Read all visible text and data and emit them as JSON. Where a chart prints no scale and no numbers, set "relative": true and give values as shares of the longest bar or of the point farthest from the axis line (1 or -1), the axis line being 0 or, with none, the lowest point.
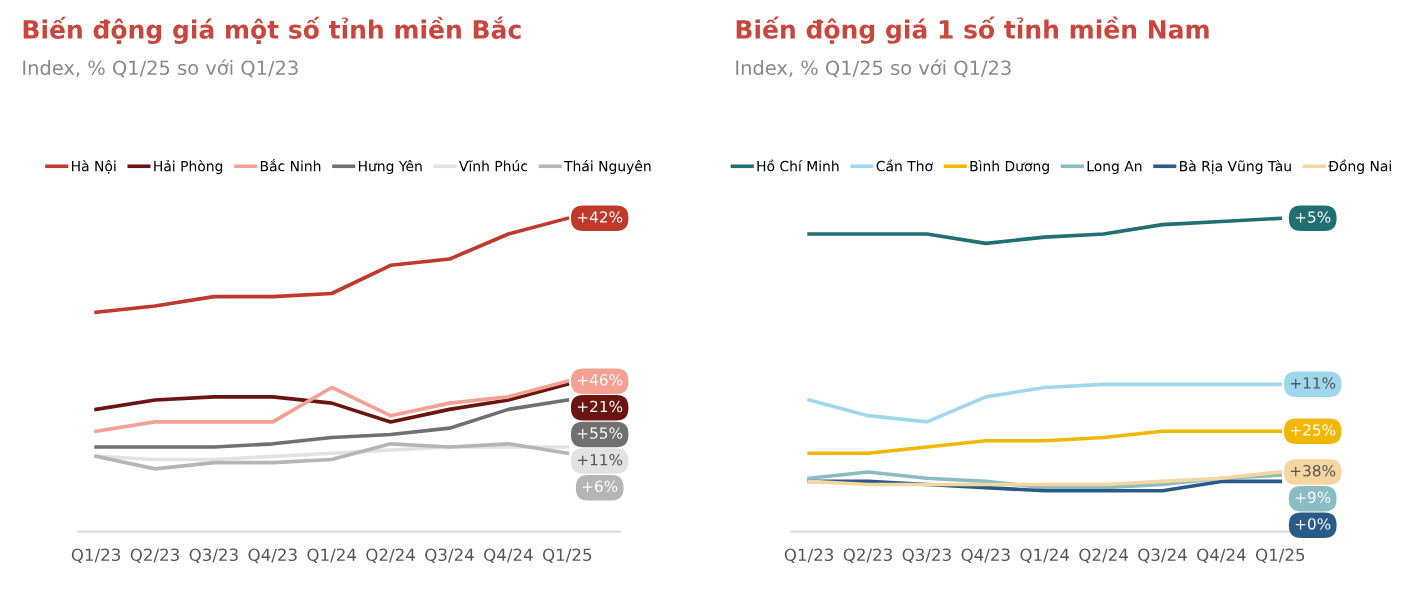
{
  "chart_data": [
    {
      "type": "line",
      "title": "Biến động giá một số tỉnh miền Bắc",
      "subtitle": "Index, % Q1/25 so với Q1/23",
      "relative": true,
      "legend": "top",
      "grid": false,
      "marker": "none",
      "line_style": "solid",
      "categories": [
        "Q1/23",
        "Q2/23",
        "Q3/23",
        "Q4/23",
        "Q1/24",
        "Q2/24",
        "Q3/24",
        "Q4/24",
        "Q1/25"
      ],
      "annotations": [
        "+42%",
        "+21%",
        "+46%",
        "+55%",
        "+11%",
        "+6%"
      ],
      "series": [
        {
          "name": "Hà Nội",
          "color": "#c0392b",
          "values": [
            0.7,
            0.72,
            0.75,
            0.75,
            0.76,
            0.85,
            0.87,
            0.95,
            1.0
          ]
        },
        {
          "name": "Hải Phòng",
          "color": "#6b1510",
          "values": [
            0.39,
            0.42,
            0.43,
            0.43,
            0.41,
            0.35,
            0.39,
            0.42,
            0.47
          ]
        },
        {
          "name": "Bắc Ninh",
          "color": "#f4a193",
          "values": [
            0.32,
            0.35,
            0.35,
            0.35,
            0.46,
            0.37,
            0.41,
            0.43,
            0.48
          ]
        },
        {
          "name": "Hưng Yên",
          "color": "#707070",
          "values": [
            0.27,
            0.27,
            0.27,
            0.28,
            0.3,
            0.31,
            0.33,
            0.39,
            0.42
          ]
        },
        {
          "name": "Vĩnh Phúc",
          "color": "#e2e2e2",
          "values": [
            0.24,
            0.23,
            0.23,
            0.24,
            0.25,
            0.26,
            0.27,
            0.27,
            0.27
          ]
        },
        {
          "name": "Thái Nguyên",
          "color": "#b5b5b5",
          "values": [
            0.24,
            0.2,
            0.22,
            0.22,
            0.23,
            0.28,
            0.27,
            0.28,
            0.25
          ]
        }
      ]
    },
    {
      "type": "line",
      "title": "Biến động giá 1 số tỉnh miền Nam",
      "subtitle": "Index, % Q1/25 so với Q1/23",
      "relative": true,
      "legend": "top",
      "grid": false,
      "marker": "none",
      "line_style": "solid",
      "categories": [
        "Q1/23",
        "Q2/23",
        "Q3/23",
        "Q4/23",
        "Q1/24",
        "Q2/24",
        "Q3/24",
        "Q4/24",
        "Q1/25"
      ],
      "annotations": [
        "+5%",
        "+11%",
        "+25%",
        "+9%",
        "+0%",
        "+38%"
      ],
      "series": [
        {
          "name": "Hồ Chí Minh",
          "color": "#1f6f73",
          "values": [
            0.95,
            0.95,
            0.95,
            0.92,
            0.94,
            0.95,
            0.98,
            0.99,
            1.0
          ]
        },
        {
          "name": "Cần Thơ",
          "color": "#9fd8ee",
          "values": [
            0.42,
            0.37,
            0.35,
            0.43,
            0.46,
            0.47,
            0.47,
            0.47,
            0.47
          ]
        },
        {
          "name": "Bình Dương",
          "color": "#f2b705",
          "values": [
            0.25,
            0.25,
            0.27,
            0.29,
            0.29,
            0.3,
            0.32,
            0.32,
            0.32
          ]
        },
        {
          "name": "Long An",
          "color": "#8abcc4",
          "values": [
            0.17,
            0.19,
            0.17,
            0.16,
            0.14,
            0.14,
            0.15,
            0.17,
            0.18
          ]
        },
        {
          "name": "Bà Rịa Vũng Tàu",
          "color": "#2a5a8a",
          "values": [
            0.16,
            0.16,
            0.15,
            0.14,
            0.13,
            0.13,
            0.13,
            0.16,
            0.16
          ]
        },
        {
          "name": "Đồng Nai",
          "color": "#f5d5a0",
          "values": [
            0.16,
            0.15,
            0.15,
            0.15,
            0.15,
            0.15,
            0.16,
            0.17,
            0.19
          ]
        }
      ]
    }
  ]
}
